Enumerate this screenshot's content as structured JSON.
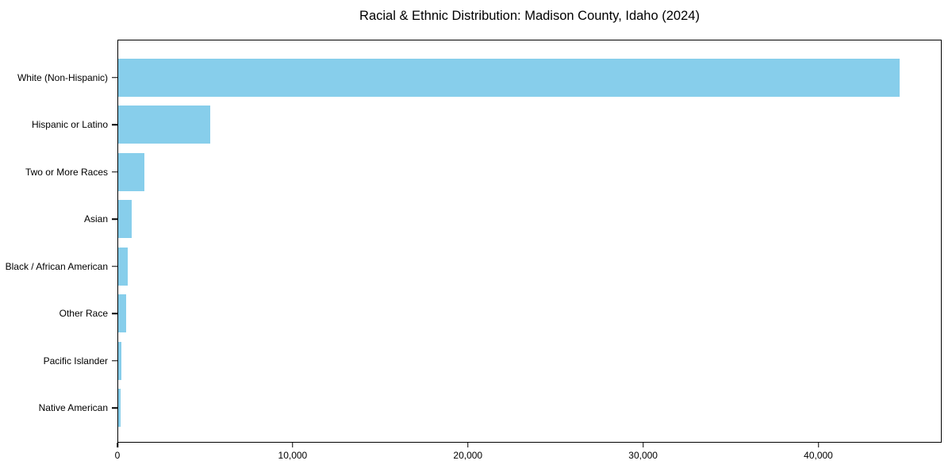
{
  "chart_data": {
    "type": "bar",
    "orientation": "horizontal",
    "title": "Racial & Ethnic Distribution: Madison County, Idaho (2024)",
    "categories": [
      "White (Non-Hispanic)",
      "Hispanic or Latino",
      "Two or More Races",
      "Asian",
      "Black / African American",
      "Other Race",
      "Pacific Islander",
      "Native American"
    ],
    "values": [
      44700,
      5250,
      1500,
      790,
      550,
      470,
      180,
      120
    ],
    "xlabel": "",
    "ylabel": "",
    "xlim": [
      0,
      47040
    ],
    "x_ticks": [
      {
        "value": 0,
        "label": "0"
      },
      {
        "value": 10000,
        "label": "10,000"
      },
      {
        "value": 20000,
        "label": "20,000"
      },
      {
        "value": 30000,
        "label": "30,000"
      },
      {
        "value": 40000,
        "label": "40,000"
      }
    ],
    "grid": false,
    "legend": null,
    "bar_color": "#87CEEB",
    "frame_color": "#000000",
    "background_color": "#ffffff"
  }
}
